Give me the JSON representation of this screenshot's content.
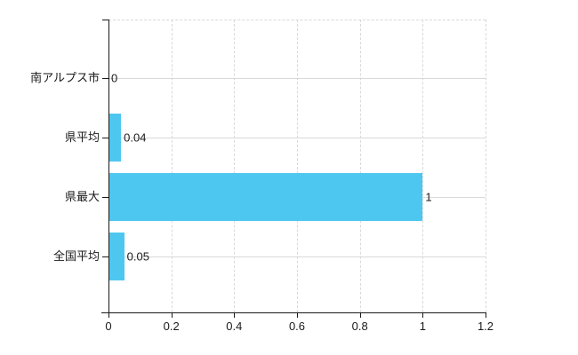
{
  "chart_data": {
    "type": "bar",
    "orientation": "horizontal",
    "title": "",
    "xlabel": "",
    "ylabel": "",
    "categories": [
      "南アルプス市",
      "県平均",
      "県最大",
      "全国平均"
    ],
    "values": [
      0,
      0.04,
      1,
      0.05
    ],
    "value_labels": [
      "0",
      "0.04",
      "1",
      "0.05"
    ],
    "xlim": [
      0,
      1.2
    ],
    "x_ticks": [
      0,
      0.2,
      0.4,
      0.6,
      0.8,
      1,
      1.2
    ],
    "x_tick_labels": [
      "0",
      "0.2",
      "0.4",
      "0.6",
      "0.8",
      "1",
      "1.2"
    ],
    "grid": true,
    "legend": false,
    "colors": {
      "bar": "#4ec7f0",
      "grid": "#d9d9d9",
      "axis": "#1a1a1a",
      "text": "#1a1a1a",
      "background": "#ffffff"
    }
  }
}
